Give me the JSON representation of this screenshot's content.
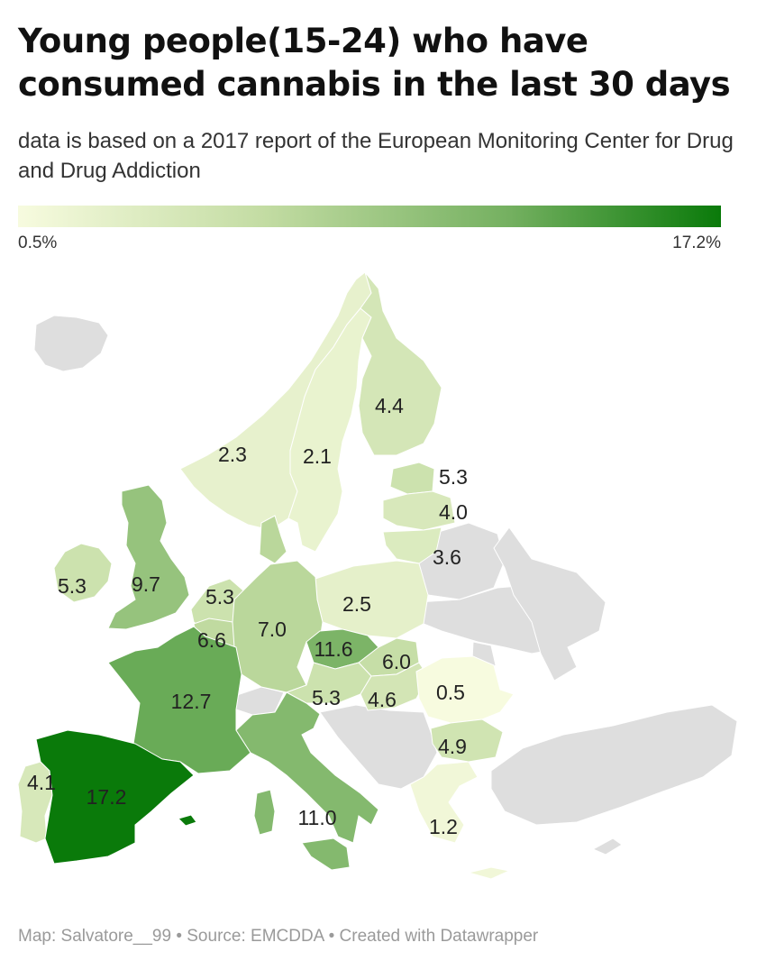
{
  "header": {
    "title": "Young people(15-24) who have consumed cannabis in the last 30 days",
    "subtitle": "data is based on a 2017 report of the European Monitoring Center for Drug and Drug Addiction"
  },
  "legend": {
    "min_label": "0.5%",
    "max_label": "17.2%",
    "min_value": 0.5,
    "max_value": 17.2,
    "color_low": "#f7fbdf",
    "color_high": "#0a7a0a"
  },
  "no_data_color": "#dedede",
  "regions": [
    {
      "value": 2.3,
      "label": "2.3"
    },
    {
      "value": 2.1,
      "label": "2.1"
    },
    {
      "value": 4.4,
      "label": "4.4"
    },
    {
      "value": 5.3,
      "label": "5.3"
    },
    {
      "value": 4.0,
      "label": "4.0"
    },
    {
      "value": 3.6,
      "label": "3.6"
    },
    {
      "value": 5.3,
      "label": "5.3"
    },
    {
      "value": 9.7,
      "label": "9.7"
    },
    {
      "value": 5.3,
      "label": "5.3"
    },
    {
      "value": 2.5,
      "label": "2.5"
    },
    {
      "value": 6.6,
      "label": "6.6"
    },
    {
      "value": 7.0,
      "label": "7.0"
    },
    {
      "value": 11.6,
      "label": "11.6"
    },
    {
      "value": 6.0,
      "label": "6.0"
    },
    {
      "value": 12.7,
      "label": "12.7"
    },
    {
      "value": 5.3,
      "label": "5.3"
    },
    {
      "value": 4.6,
      "label": "4.6"
    },
    {
      "value": 0.5,
      "label": "0.5"
    },
    {
      "value": 4.9,
      "label": "4.9"
    },
    {
      "value": 4.1,
      "label": "4.1"
    },
    {
      "value": 17.2,
      "label": "17.2"
    },
    {
      "value": 11.0,
      "label": "11.0"
    },
    {
      "value": 1.2,
      "label": "1.2"
    }
  ],
  "footer": "Map: Salvatore__99 • Source: EMCDDA • Created with Datawrapper"
}
